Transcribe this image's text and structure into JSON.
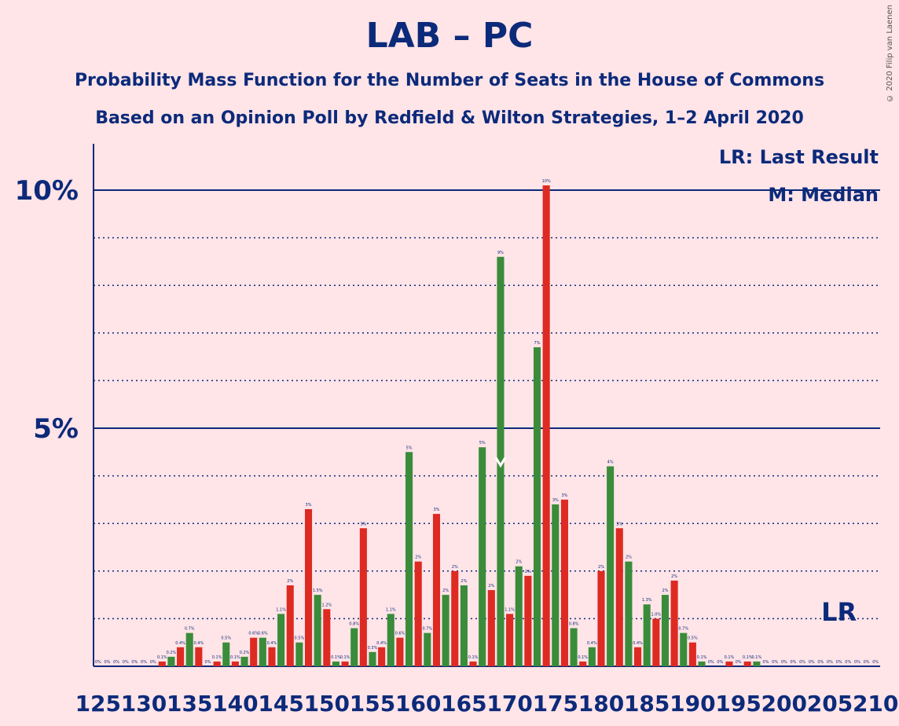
{
  "title": "LAB – PC",
  "subtitle1": "Probability Mass Function for the Number of Seats in the House of Commons",
  "subtitle2": "Based on an Opinion Poll by Redfield & Wilton Strategies, 1–2 April 2020",
  "copyright": "© 2020 Filip van Laenen",
  "legend": {
    "lr": "LR: Last Result",
    "median": "M: Median"
  },
  "colors": {
    "background": "#ffe4e8",
    "text": "#0c2a7a",
    "green": "#3a8c3a",
    "red": "#dd2a22"
  },
  "chart_data": {
    "type": "bar",
    "x_start": 125,
    "values": [
      0,
      0,
      0,
      0,
      0,
      0,
      0,
      0.1,
      0.2,
      0.4,
      0.7,
      0.4,
      0,
      0.1,
      0.5,
      0.1,
      0.2,
      0.6,
      0.6,
      0.4,
      1.1,
      1.7,
      0.5,
      3.3,
      1.5,
      1.2,
      0.1,
      0.1,
      0.8,
      2.9,
      0.3,
      0.4,
      1.1,
      0.6,
      4.5,
      2.2,
      0.7,
      3.2,
      1.5,
      2.0,
      1.7,
      0.1,
      4.6,
      1.6,
      8.6,
      1.1,
      2.1,
      1.9,
      6.7,
      10.1,
      3.4,
      3.5,
      0.8,
      0.1,
      0.4,
      2.0,
      4.2,
      2.9,
      2.2,
      0.4,
      1.3,
      1.0,
      1.5,
      1.8,
      0.7,
      0.5,
      0.1,
      0,
      0,
      0.1,
      0,
      0.1,
      0.1,
      0,
      0,
      0,
      0,
      0,
      0,
      0,
      0,
      0,
      0,
      0,
      0,
      0
    ],
    "labels": [
      "0%",
      "0%",
      "0%",
      "0%",
      "0%",
      "0%",
      "0%",
      "0.1%",
      "0.2%",
      "0.4%",
      "0.7%",
      "0.4%",
      "0%",
      "0.1%",
      "0.5%",
      "0.1%",
      "0.2%",
      "0.6%",
      "0.6%",
      "0.4%",
      "1.1%",
      "2%",
      "0.5%",
      "3%",
      "1.5%",
      "1.2%",
      "0.1%",
      "0.1%",
      "0.8%",
      "3%",
      "0.3%",
      "0.4%",
      "1.1%",
      "0.6%",
      "5%",
      "2%",
      "0.7%",
      "3%",
      "2%",
      "2%",
      "2%",
      "0.1%",
      "5%",
      "2%",
      "9%",
      "1.1%",
      "2%",
      "2%",
      "7%",
      "10%",
      "3%",
      "3%",
      "0.8%",
      "0.1%",
      "0.4%",
      "2%",
      "4%",
      "3%",
      "2%",
      "0.4%",
      "1.3%",
      "1.0%",
      "2%",
      "2%",
      "0.7%",
      "0.5%",
      "0.1%",
      "0%",
      "0%",
      "0.1%",
      "0%",
      "0.1%",
      "0.1%",
      "0%",
      "0%",
      "0%",
      "0%",
      "0%",
      "0%",
      "0%",
      "0%",
      "0%",
      "0%",
      "0%",
      "0%",
      "0%"
    ],
    "x_ticks": [
      "125",
      "130",
      "135",
      "140",
      "145",
      "150",
      "155",
      "160",
      "165",
      "170",
      "175",
      "180",
      "185",
      "190",
      "195",
      "200",
      "205",
      "210"
    ],
    "y_ticks": [
      "5%",
      "10%"
    ],
    "ylim": [
      0,
      11
    ],
    "median_seat": 169,
    "last_result_seat": 206,
    "last_result_label": "LR",
    "median_label": "M"
  }
}
